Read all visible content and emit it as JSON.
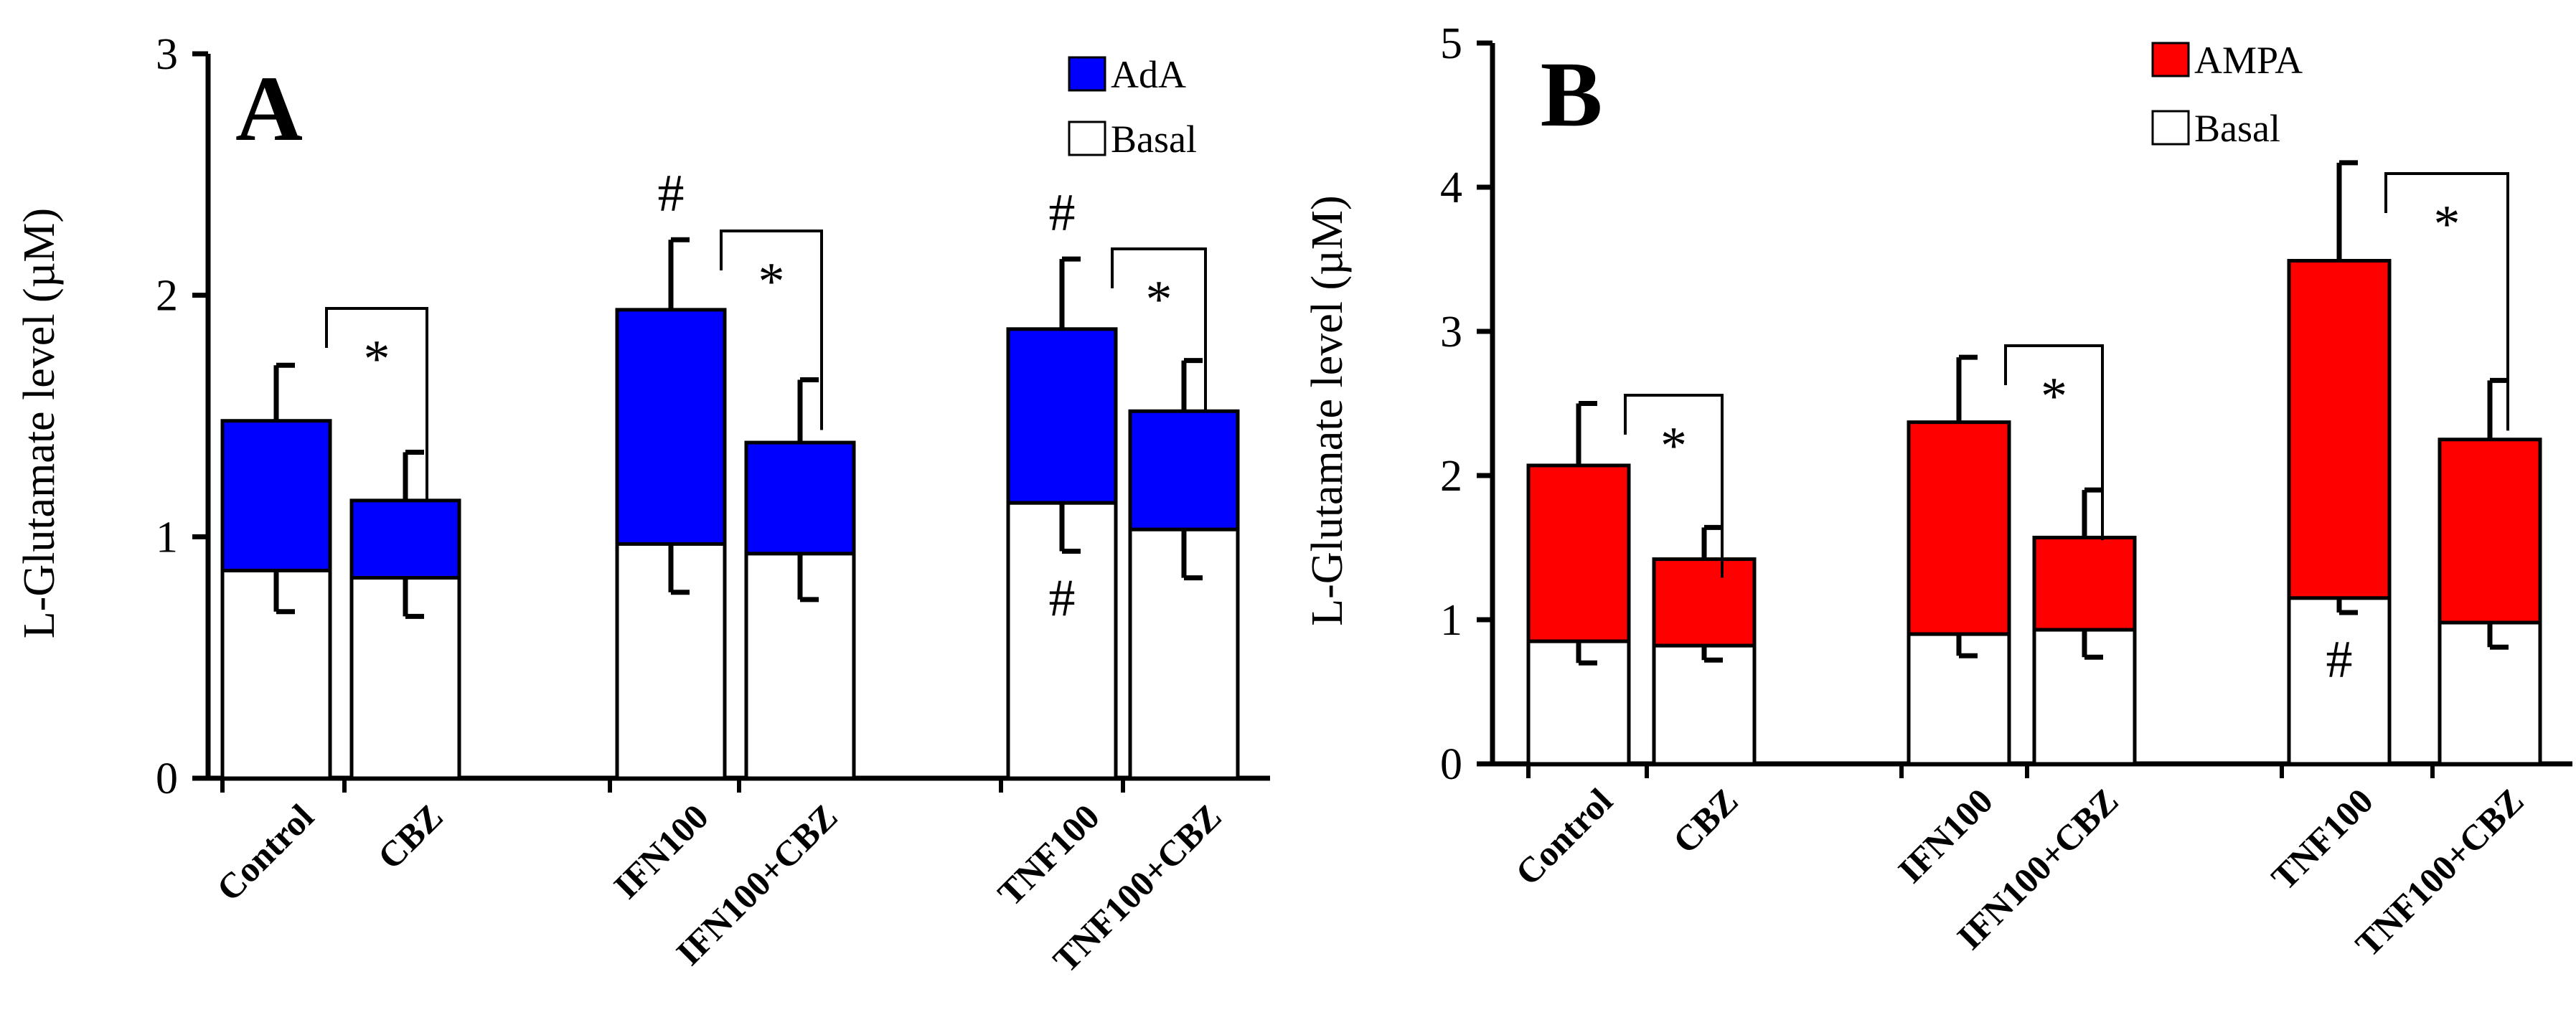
{
  "chart_data": [
    {
      "type": "bar",
      "panel_label": "A",
      "ylabel": "L-Glutamate level (µM)",
      "ylim": [
        0,
        3
      ],
      "yticks": [
        "0",
        "1",
        "2",
        "3"
      ],
      "categories": [
        "Control",
        "CBZ",
        "IFN100",
        "IFN100+CBZ",
        "TNF100",
        "TNF100+CBZ"
      ],
      "legend": {
        "placement": "top-right"
      },
      "colors": {
        "stimulated": "#0000ff",
        "basal": "#ffffff"
      },
      "series": [
        {
          "name": "AdA",
          "values": [
            1.48,
            1.15,
            1.94,
            1.39,
            1.86,
            1.52
          ],
          "errors": [
            0.23,
            0.2,
            0.29,
            0.26,
            0.29,
            0.21
          ]
        },
        {
          "name": "Basal",
          "values": [
            0.86,
            0.83,
            0.97,
            0.93,
            1.14,
            1.03
          ],
          "errors": [
            0.17,
            0.16,
            0.2,
            0.19,
            0.2,
            0.2
          ]
        }
      ],
      "significance_brackets": [
        {
          "from": "Control",
          "to": "CBZ",
          "label": "*"
        },
        {
          "from": "IFN100",
          "to": "IFN100+CBZ",
          "label": "*"
        },
        {
          "from": "TNF100",
          "to": "TNF100+CBZ",
          "label": "*"
        }
      ],
      "hash_marks": [
        {
          "category": "IFN100",
          "series": "AdA",
          "label": "#"
        },
        {
          "category": "TNF100",
          "series": "AdA",
          "label": "#"
        },
        {
          "category": "TNF100",
          "series": "Basal",
          "label": "#"
        }
      ]
    },
    {
      "type": "bar",
      "panel_label": "B",
      "ylabel": "L-Glutamate level (µM)",
      "ylim": [
        0,
        5
      ],
      "yticks": [
        "0",
        "1",
        "2",
        "3",
        "4",
        "5"
      ],
      "categories": [
        "Control",
        "CBZ",
        "IFN100",
        "IFN100+CBZ",
        "TNF100",
        "TNF100+CBZ"
      ],
      "legend": {
        "placement": "top-right"
      },
      "colors": {
        "stimulated": "#ff0000",
        "basal": "#ffffff"
      },
      "series": [
        {
          "name": "AMPA",
          "values": [
            2.07,
            1.42,
            2.37,
            1.57,
            3.49,
            2.25
          ],
          "errors": [
            0.43,
            0.22,
            0.45,
            0.33,
            0.68,
            0.41
          ]
        },
        {
          "name": "Basal",
          "values": [
            0.85,
            0.82,
            0.9,
            0.93,
            1.15,
            0.98
          ],
          "errors": [
            0.15,
            0.1,
            0.15,
            0.19,
            0.1,
            0.17
          ]
        }
      ],
      "significance_brackets": [
        {
          "from": "Control",
          "to": "CBZ",
          "label": "*"
        },
        {
          "from": "IFN100",
          "to": "IFN100+CBZ",
          "label": "*"
        },
        {
          "from": "TNF100",
          "to": "TNF100+CBZ",
          "label": "*"
        }
      ],
      "hash_marks": [
        {
          "category": "TNF100",
          "series": "Basal",
          "label": "#"
        }
      ]
    }
  ]
}
